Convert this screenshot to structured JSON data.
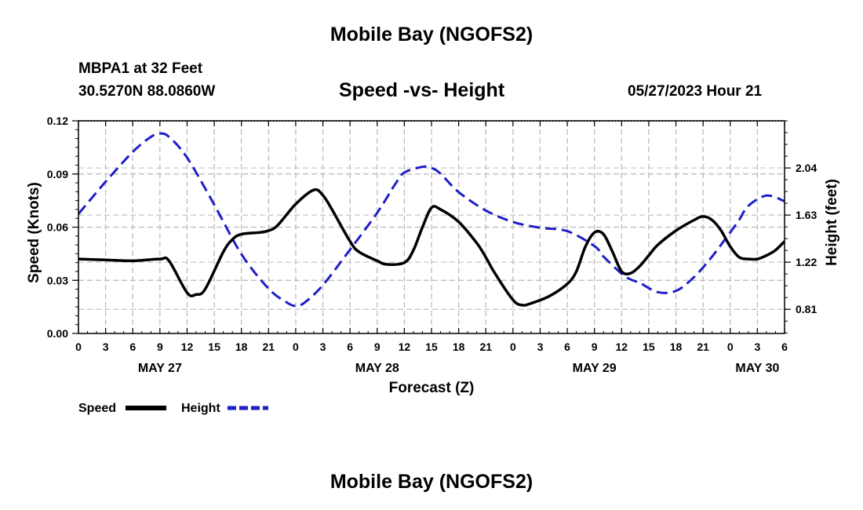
{
  "header": {
    "title": "Mobile Bay (NGOFS2)",
    "station": "MBPA1 at 32 Feet",
    "coords": "30.5270N  88.0860W",
    "subtitle": "Speed -vs- Height",
    "datetime": "05/27/2023 Hour 21"
  },
  "footer": {
    "title": "Mobile Bay (NGOFS2)"
  },
  "chart_data": {
    "type": "line",
    "xlabel": "Forecast (Z)",
    "ylabel_left": "Speed (Knots)",
    "ylabel_right": "Height (feet)",
    "x_unit": "hours since May 27 00Z",
    "xlim": [
      0,
      78
    ],
    "ylim_left": [
      0,
      0.12
    ],
    "ylim_right": [
      0.6,
      2.45
    ],
    "left_ticks": [
      0.0,
      0.03,
      0.06,
      0.09,
      0.12
    ],
    "left_tick_labels": [
      "0.00",
      "0.03",
      "0.06",
      "0.09",
      "0.12"
    ],
    "right_ticks": [
      0.81,
      1.22,
      1.63,
      2.04
    ],
    "right_tick_labels": [
      "0.81",
      "1.22",
      "1.63",
      "2.04"
    ],
    "x_ticks": [
      0,
      3,
      6,
      9,
      12,
      15,
      18,
      21,
      24,
      27,
      30,
      33,
      36,
      39,
      42,
      45,
      48,
      51,
      54,
      57,
      60,
      63,
      66,
      69,
      72,
      75,
      78
    ],
    "x_tick_labels": [
      "0",
      "3",
      "6",
      "9",
      "12",
      "15",
      "18",
      "21",
      "0",
      "3",
      "6",
      "9",
      "12",
      "15",
      "18",
      "21",
      "0",
      "3",
      "6",
      "9",
      "12",
      "15",
      "18",
      "21",
      "0",
      "3",
      "6"
    ],
    "date_labels": [
      {
        "x": 9,
        "label": "MAY 27"
      },
      {
        "x": 33,
        "label": "MAY 28"
      },
      {
        "x": 57,
        "label": "MAY 29"
      },
      {
        "x": 75,
        "label": "MAY 30"
      }
    ],
    "grid": true,
    "legend": [
      {
        "label": "Speed",
        "color": "#000000",
        "style": "solid"
      },
      {
        "label": "Height",
        "color": "#1f1fc8",
        "style": "dashed"
      }
    ],
    "series": [
      {
        "name": "Speed",
        "axis": "left",
        "color": "#000000",
        "dashed": false,
        "x": [
          0,
          3,
          6,
          9,
          10,
          12,
          13,
          14,
          16,
          17,
          18,
          20,
          21,
          22,
          24,
          26,
          27,
          28,
          30,
          31,
          33,
          34,
          36,
          37,
          38,
          39,
          40,
          42,
          44,
          45,
          46,
          48,
          49,
          50,
          52,
          54,
          55,
          56,
          57,
          58,
          59,
          60,
          61,
          62,
          63,
          64,
          66,
          68,
          69,
          70,
          71,
          72,
          73,
          74,
          75,
          76,
          77,
          78
        ],
        "values": [
          0.042,
          0.0415,
          0.041,
          0.042,
          0.041,
          0.023,
          0.022,
          0.025,
          0.046,
          0.053,
          0.056,
          0.057,
          0.058,
          0.061,
          0.073,
          0.081,
          0.078,
          0.07,
          0.052,
          0.046,
          0.041,
          0.039,
          0.04,
          0.047,
          0.06,
          0.071,
          0.07,
          0.063,
          0.051,
          0.043,
          0.034,
          0.019,
          0.016,
          0.017,
          0.021,
          0.028,
          0.035,
          0.049,
          0.057,
          0.056,
          0.046,
          0.035,
          0.034,
          0.038,
          0.044,
          0.05,
          0.058,
          0.064,
          0.066,
          0.064,
          0.058,
          0.049,
          0.043,
          0.042,
          0.042,
          0.044,
          0.047,
          0.052
        ]
      },
      {
        "name": "Height",
        "axis": "right",
        "color": "#1f1fc8",
        "dashed": true,
        "x": [
          0,
          3,
          6,
          8,
          9,
          10,
          12,
          15,
          18,
          21,
          23,
          24,
          25,
          27,
          30,
          33,
          35,
          36,
          38,
          39,
          40,
          42,
          45,
          48,
          51,
          54,
          57,
          58,
          60,
          61,
          62,
          64,
          66,
          68,
          70,
          72,
          73,
          74,
          76,
          78
        ],
        "values": [
          1.64,
          1.92,
          2.18,
          2.31,
          2.34,
          2.31,
          2.13,
          1.72,
          1.29,
          0.99,
          0.87,
          0.84,
          0.87,
          1.02,
          1.33,
          1.65,
          1.9,
          2.0,
          2.05,
          2.04,
          1.99,
          1.83,
          1.67,
          1.57,
          1.52,
          1.49,
          1.36,
          1.27,
          1.12,
          1.07,
          1.04,
          0.96,
          0.97,
          1.09,
          1.27,
          1.48,
          1.59,
          1.71,
          1.8,
          1.75
        ]
      }
    ]
  }
}
